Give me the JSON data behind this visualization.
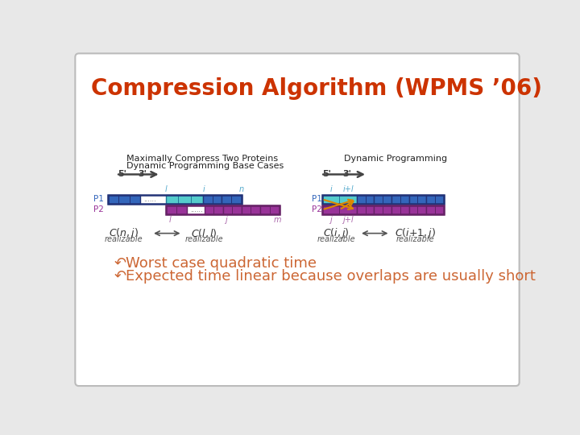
{
  "title": "Compression Algorithm (WPMS ’06)",
  "title_color": "#cc3300",
  "bg_color": "#ffffff",
  "outer_bg": "#e8e8e8",
  "bullet1": "Worst case quadratic time",
  "bullet2": "Expected time linear because overlaps are usually short",
  "bullet_color": "#cc6633",
  "bullet_sym_color": "#cc6633",
  "left_label_line1": "Maximally Compress Two Proteins",
  "left_label_line2": "Dynamic Programming Base Cases",
  "right_label": "Dynamic Programming",
  "p1_color": "#3366bb",
  "p2_color": "#993399",
  "overlap_color": "#55cccc",
  "p1_outline": "#223377",
  "p2_outline": "#662266",
  "text_dark": "#333333",
  "label_blue": "#55aacc",
  "label_purple": "#aa66aa",
  "arrow_orange": "#dd8800",
  "double_arrow_color": "#555555",
  "formula_color": "#333333"
}
